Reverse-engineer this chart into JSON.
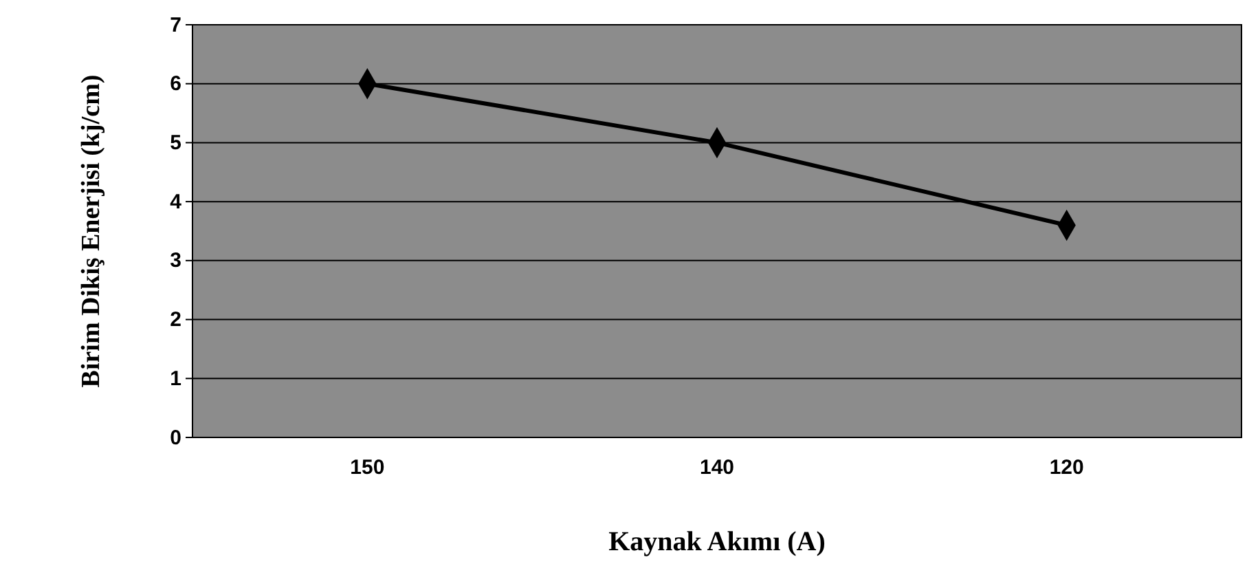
{
  "chart_data": {
    "type": "line",
    "xlabel": "Kaynak Akımı (A)",
    "ylabel": "Birim Dikiş Enerjisi (kj/cm)",
    "categories": [
      "150",
      "140",
      "120"
    ],
    "series": [
      {
        "color": "#000000",
        "values": [
          6,
          5,
          3.6
        ]
      }
    ],
    "ylim": [
      0,
      7
    ],
    "yticks": [
      0,
      1,
      2,
      3,
      4,
      5,
      6,
      7
    ],
    "grid": "y",
    "marker": "diamond",
    "line_style": "solid"
  }
}
